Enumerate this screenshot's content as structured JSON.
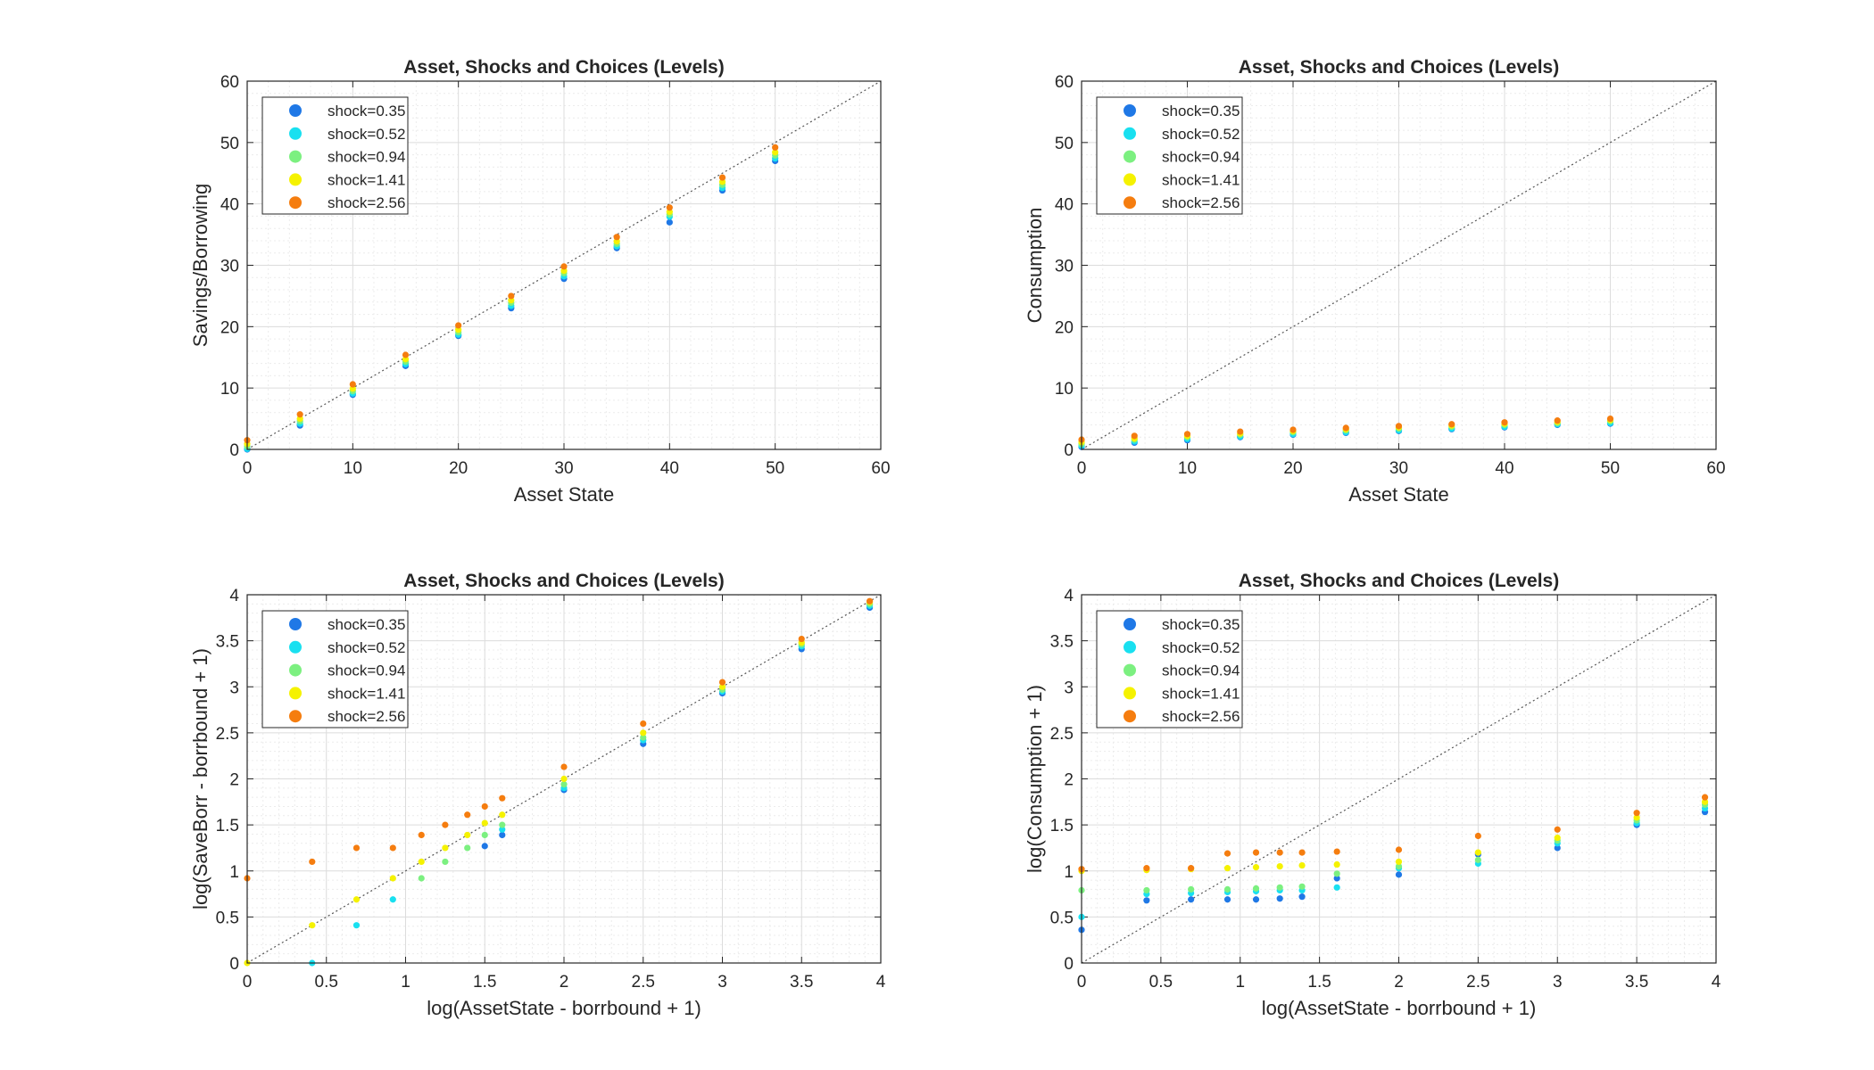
{
  "colors": {
    "background": "#ffffff",
    "axis": "#262626",
    "grid_major": "#dcdcdc",
    "grid_minor": "#ececec",
    "diagonal": "#555555"
  },
  "legend_entries": [
    {
      "label": "shock=0.35",
      "color": "#1f78e6"
    },
    {
      "label": "shock=0.52",
      "color": "#19e0f0"
    },
    {
      "label": "shock=0.94",
      "color": "#7cf080"
    },
    {
      "label": "shock=1.41",
      "color": "#f5f200"
    },
    {
      "label": "shock=2.56",
      "color": "#f57d0f"
    }
  ],
  "chart_data": [
    {
      "type": "scatter",
      "title": "Asset, Shocks and Choices (Levels)",
      "xlabel": "Asset State",
      "ylabel": "Savings/Borrowing",
      "xlim": [
        0,
        60
      ],
      "ylim": [
        0,
        60
      ],
      "xticks": [
        "0",
        "10",
        "20",
        "30",
        "40",
        "50",
        "60"
      ],
      "yticks": [
        "0",
        "10",
        "20",
        "30",
        "40",
        "50",
        "60"
      ],
      "grid": true,
      "legend_position": "top-left",
      "reference_line": "45-degree",
      "x": [
        0,
        5,
        10,
        15,
        20,
        25,
        30,
        35,
        40,
        45,
        50
      ],
      "series": [
        {
          "name": "shock=0.35",
          "y": [
            0.0,
            3.9,
            8.9,
            13.6,
            18.5,
            23.0,
            27.8,
            32.8,
            37.0,
            42.2,
            47.0
          ]
        },
        {
          "name": "shock=0.52",
          "y": [
            0.1,
            4.2,
            9.1,
            13.9,
            18.7,
            23.4,
            28.2,
            33.1,
            37.9,
            42.6,
            47.4
          ]
        },
        {
          "name": "shock=0.94",
          "y": [
            0.5,
            4.6,
            9.5,
            14.3,
            19.1,
            23.9,
            28.7,
            33.5,
            38.3,
            43.1,
            47.9
          ]
        },
        {
          "name": "shock=1.41",
          "y": [
            0.9,
            5.0,
            9.9,
            14.7,
            19.5,
            24.3,
            29.1,
            33.9,
            38.7,
            43.6,
            48.4
          ]
        },
        {
          "name": "shock=2.56",
          "y": [
            1.5,
            5.7,
            10.6,
            15.4,
            20.2,
            25.0,
            29.8,
            34.6,
            39.4,
            44.3,
            49.2
          ]
        }
      ]
    },
    {
      "type": "scatter",
      "title": "Asset, Shocks and Choices (Levels)",
      "xlabel": "Asset State",
      "ylabel": "Consumption",
      "xlim": [
        0,
        60
      ],
      "ylim": [
        0,
        60
      ],
      "xticks": [
        "0",
        "10",
        "20",
        "30",
        "40",
        "50",
        "60"
      ],
      "yticks": [
        "0",
        "10",
        "20",
        "30",
        "40",
        "50",
        "60"
      ],
      "grid": true,
      "legend_position": "top-left",
      "reference_line": "45-degree",
      "x": [
        0,
        5,
        10,
        15,
        20,
        25,
        30,
        35,
        40,
        45,
        50
      ],
      "series": [
        {
          "name": "shock=0.35",
          "y": [
            0.4,
            1.1,
            1.5,
            2.0,
            2.4,
            2.7,
            3.0,
            3.3,
            3.6,
            4.0,
            4.2
          ]
        },
        {
          "name": "shock=0.52",
          "y": [
            0.6,
            1.3,
            1.7,
            2.1,
            2.5,
            2.8,
            3.1,
            3.4,
            3.7,
            4.1,
            4.3
          ]
        },
        {
          "name": "shock=0.94",
          "y": [
            0.9,
            1.6,
            2.0,
            2.4,
            2.8,
            3.1,
            3.4,
            3.7,
            4.0,
            4.3,
            4.6
          ]
        },
        {
          "name": "shock=1.41",
          "y": [
            1.2,
            1.8,
            2.2,
            2.6,
            3.0,
            3.3,
            3.6,
            3.9,
            4.2,
            4.5,
            4.8
          ]
        },
        {
          "name": "shock=2.56",
          "y": [
            1.6,
            2.2,
            2.5,
            2.9,
            3.2,
            3.5,
            3.8,
            4.1,
            4.4,
            4.7,
            5.0
          ]
        }
      ]
    },
    {
      "type": "scatter",
      "title": "Asset, Shocks and Choices (Levels)",
      "xlabel": "log(AssetState - borrbound + 1)",
      "ylabel": "log(SaveBorr - borrbound + 1)",
      "xlim": [
        0,
        4
      ],
      "ylim": [
        0,
        4
      ],
      "xticks": [
        "0",
        "0.5",
        "1",
        "1.5",
        "2",
        "2.5",
        "3",
        "3.5",
        "4"
      ],
      "yticks": [
        "0",
        "0.5",
        "1",
        "1.5",
        "2",
        "2.5",
        "3",
        "3.5",
        "4"
      ],
      "grid": true,
      "legend_position": "top-left",
      "reference_line": "45-degree",
      "x": [
        0,
        0.41,
        0.69,
        0.92,
        1.1,
        1.25,
        1.39,
        1.5,
        1.61,
        2.0,
        2.5,
        3.0,
        3.5,
        3.93
      ],
      "series": [
        {
          "name": "shock=0.35",
          "y": [
            null,
            null,
            null,
            null,
            null,
            null,
            null,
            1.27,
            1.39,
            1.88,
            2.38,
            2.93,
            3.41,
            3.86
          ]
        },
        {
          "name": "shock=0.52",
          "y": [
            null,
            0.0,
            0.41,
            0.69,
            null,
            null,
            null,
            null,
            1.45,
            1.9,
            2.42,
            2.95,
            3.44,
            3.88
          ]
        },
        {
          "name": "shock=0.94",
          "y": [
            null,
            null,
            null,
            null,
            0.92,
            1.1,
            1.25,
            1.39,
            1.5,
            1.94,
            2.45,
            2.97,
            3.46,
            3.9
          ]
        },
        {
          "name": "shock=1.41",
          "y": [
            0.0,
            0.41,
            0.69,
            0.92,
            1.1,
            1.25,
            1.39,
            1.52,
            1.61,
            2.0,
            2.5,
            3.0,
            3.48,
            3.92
          ]
        },
        {
          "name": "shock=2.56",
          "y": [
            0.92,
            1.1,
            1.25,
            1.25,
            1.39,
            1.5,
            1.61,
            1.7,
            1.79,
            2.13,
            2.6,
            3.05,
            3.52,
            3.93
          ]
        }
      ]
    },
    {
      "type": "scatter",
      "title": "Asset, Shocks and Choices (Levels)",
      "xlabel": "log(AssetState - borrbound + 1)",
      "ylabel": "log(Consumption + 1)",
      "xlim": [
        0,
        4
      ],
      "ylim": [
        0,
        4
      ],
      "xticks": [
        "0",
        "0.5",
        "1",
        "1.5",
        "2",
        "2.5",
        "3",
        "3.5",
        "4"
      ],
      "yticks": [
        "0",
        "0.5",
        "1",
        "1.5",
        "2",
        "2.5",
        "3",
        "3.5",
        "4"
      ],
      "grid": true,
      "legend_position": "top-left",
      "reference_line": "45-degree",
      "x": [
        0,
        0.41,
        0.69,
        0.92,
        1.1,
        1.25,
        1.39,
        1.61,
        2.0,
        2.5,
        3.0,
        3.5,
        3.93
      ],
      "series": [
        {
          "name": "shock=0.35",
          "y": [
            0.36,
            0.68,
            0.69,
            0.69,
            0.69,
            0.7,
            0.72,
            0.92,
            0.96,
            1.18,
            1.25,
            1.5,
            1.64
          ]
        },
        {
          "name": "shock=0.52",
          "y": [
            0.5,
            0.75,
            0.76,
            0.77,
            0.78,
            0.79,
            0.79,
            0.82,
            1.03,
            1.08,
            1.3,
            1.52,
            1.68
          ]
        },
        {
          "name": "shock=0.94",
          "y": [
            0.79,
            0.79,
            0.8,
            0.8,
            0.81,
            0.82,
            0.83,
            0.97,
            1.05,
            1.12,
            1.33,
            1.55,
            1.72
          ]
        },
        {
          "name": "shock=1.41",
          "y": [
            1.0,
            1.01,
            1.02,
            1.03,
            1.04,
            1.05,
            1.06,
            1.07,
            1.1,
            1.2,
            1.36,
            1.58,
            1.75
          ]
        },
        {
          "name": "shock=2.56",
          "y": [
            1.02,
            1.03,
            1.03,
            1.19,
            1.2,
            1.2,
            1.2,
            1.21,
            1.23,
            1.38,
            1.45,
            1.63,
            1.8
          ]
        }
      ]
    }
  ]
}
